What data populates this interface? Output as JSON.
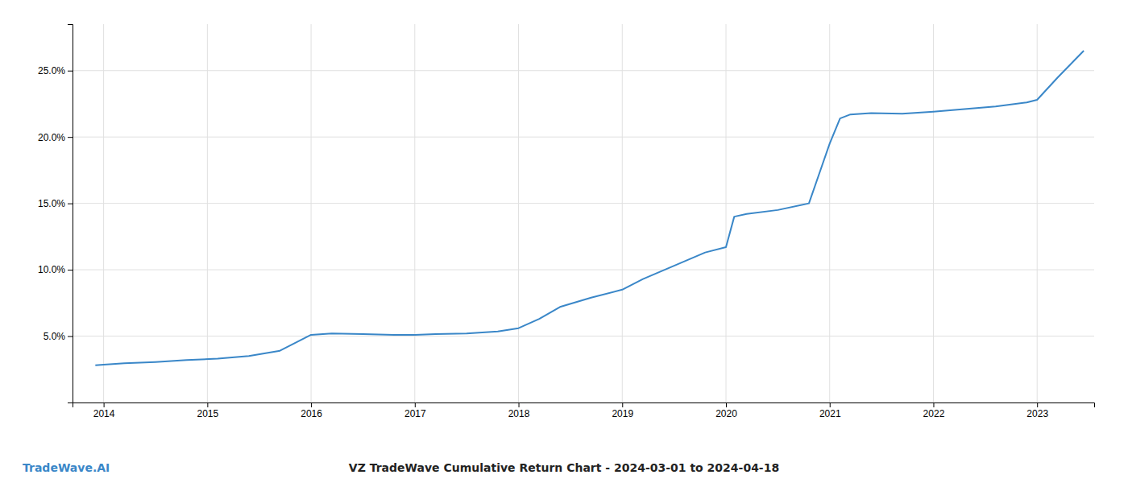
{
  "chart_data": {
    "type": "line",
    "title": "VZ TradeWave Cumulative Return Chart - 2024-03-01 to 2024-04-18",
    "annotations": [
      {
        "text": "TradeWave.AI",
        "color": "#3a87c8"
      }
    ],
    "color": "#3a87c8",
    "x": [
      2013.92,
      2014.0,
      2014.2,
      2014.5,
      2014.8,
      2015.1,
      2015.4,
      2015.7,
      2016.0,
      2016.2,
      2016.5,
      2016.8,
      2017.0,
      2017.2,
      2017.5,
      2017.8,
      2018.0,
      2018.2,
      2018.4,
      2018.7,
      2019.0,
      2019.2,
      2019.5,
      2019.8,
      2020.0,
      2020.08,
      2020.2,
      2020.5,
      2020.8,
      2021.0,
      2021.1,
      2021.2,
      2021.4,
      2021.7,
      2022.0,
      2022.3,
      2022.6,
      2022.9,
      2023.0,
      2023.2,
      2023.45
    ],
    "values": [
      2.8,
      2.85,
      2.95,
      3.05,
      3.2,
      3.3,
      3.5,
      3.9,
      5.1,
      5.2,
      5.15,
      5.1,
      5.1,
      5.15,
      5.2,
      5.35,
      5.6,
      6.3,
      7.2,
      7.9,
      8.5,
      9.3,
      10.3,
      11.3,
      11.7,
      14.0,
      14.2,
      14.5,
      15.0,
      19.5,
      21.4,
      21.7,
      21.8,
      21.75,
      21.9,
      22.1,
      22.3,
      22.6,
      22.8,
      24.5,
      26.5
    ],
    "xlim": [
      2013.7,
      2023.55
    ],
    "xticks": [
      2014,
      2015,
      2016,
      2017,
      2018,
      2019,
      2020,
      2021,
      2022,
      2023
    ],
    "ylim": [
      0,
      28.5
    ],
    "yticks": [
      {
        "value": 5.0,
        "label": "5.0%"
      },
      {
        "value": 10.0,
        "label": "10.0%"
      },
      {
        "value": 15.0,
        "label": "15.0%"
      },
      {
        "value": 20.0,
        "label": "20.0%"
      },
      {
        "value": 25.0,
        "label": "25.0%"
      }
    ],
    "grid": true
  }
}
